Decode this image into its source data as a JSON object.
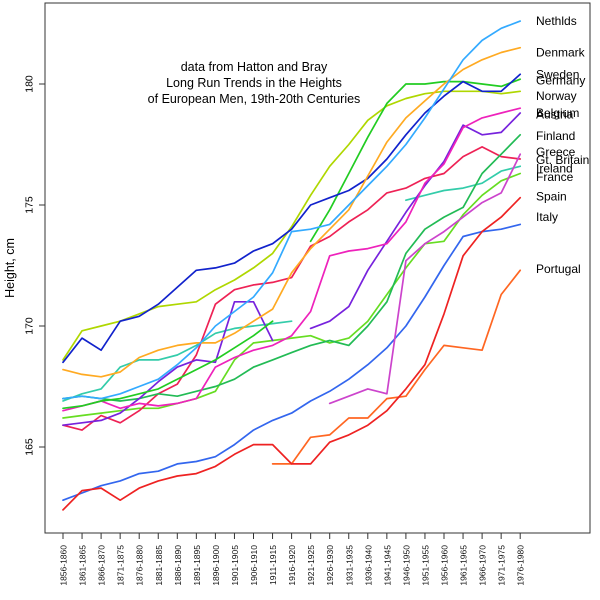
{
  "chart_data": {
    "type": "line",
    "title_lines": [
      "data from Hatton and Bray",
      "Long Run Trends in the Heights",
      "of European Men, 19th-20th Centuries"
    ],
    "ylabel": "Height, cm",
    "y_ticks": [
      165,
      170,
      175,
      180
    ],
    "ylim": [
      161.4,
      183.4
    ],
    "grid": false,
    "legend_position": "right-inline-labels",
    "x_categories": [
      "1856-1860",
      "1861-1865",
      "1866-1870",
      "1871-1875",
      "1876-1880",
      "1881-1885",
      "1886-1890",
      "1891-1895",
      "1896-1900",
      "1901-1905",
      "1906-1910",
      "1911-1915",
      "1916-1920",
      "1921-1925",
      "1926-1930",
      "1931-1935",
      "1936-1940",
      "1941-1945",
      "1946-1950",
      "1951-1955",
      "1956-1960",
      "1961-1965",
      "1966-1970",
      "1971-1975",
      "1976-1980"
    ],
    "series": [
      {
        "id": "portugal",
        "name": "Portugal",
        "color": "#FF6622",
        "label_cm": 172.35,
        "values": [
          null,
          null,
          null,
          null,
          null,
          null,
          null,
          null,
          null,
          null,
          null,
          164.3,
          164.3,
          165.4,
          165.5,
          166.2,
          166.2,
          167.0,
          167.1,
          168.2,
          169.2,
          169.1,
          169.0,
          171.3,
          172.3
        ]
      },
      {
        "id": "italy",
        "name": "Italy",
        "color": "#3366EE",
        "label_cm": 174.5,
        "values": [
          162.8,
          163.1,
          163.4,
          163.6,
          163.9,
          164.0,
          164.3,
          164.4,
          164.6,
          165.1,
          165.7,
          166.1,
          166.4,
          166.9,
          167.3,
          167.8,
          168.4,
          169.1,
          170.0,
          171.2,
          172.5,
          173.7,
          173.9,
          174.0,
          174.2
        ]
      },
      {
        "id": "spain",
        "name": "Spain",
        "color": "#EE2222",
        "label_cm": 175.35,
        "values": [
          162.4,
          163.2,
          163.3,
          162.8,
          163.3,
          163.6,
          163.8,
          163.9,
          164.2,
          164.7,
          165.1,
          165.1,
          164.3,
          164.3,
          165.2,
          165.5,
          165.9,
          166.5,
          167.4,
          168.4,
          170.5,
          172.9,
          173.9,
          174.5,
          175.3
        ]
      },
      {
        "id": "france",
        "name": "France",
        "color": "#66DD22",
        "label_cm": 176.15,
        "values": [
          166.2,
          166.3,
          166.4,
          166.5,
          166.6,
          166.6,
          166.8,
          167.0,
          167.3,
          168.6,
          169.3,
          169.4,
          169.5,
          169.6,
          169.3,
          169.5,
          170.2,
          171.3,
          172.4,
          173.4,
          173.5,
          174.6,
          175.4,
          176.0,
          176.3
        ]
      },
      {
        "id": "ireland",
        "name": "Ireland",
        "color": "#33CCAA",
        "label_cm": 176.5,
        "values": [
          166.9,
          167.2,
          167.4,
          168.3,
          168.6,
          168.6,
          168.8,
          169.2,
          169.7,
          169.9,
          170.0,
          170.1,
          170.2,
          null,
          null,
          null,
          null,
          null,
          175.2,
          175.4,
          175.6,
          175.7,
          175.9,
          176.4,
          176.6
        ]
      },
      {
        "id": "gt-britain",
        "name": "Gt. Britain",
        "color": "#EE2255",
        "label_cm": 176.85,
        "values": [
          165.9,
          165.7,
          166.3,
          166.0,
          166.5,
          167.2,
          167.6,
          168.8,
          170.9,
          171.5,
          171.7,
          171.8,
          172.0,
          173.3,
          173.7,
          174.3,
          174.8,
          175.5,
          175.7,
          176.1,
          176.3,
          177.0,
          177.4,
          177.0,
          176.9
        ]
      },
      {
        "id": "greece",
        "name": "Greece",
        "color": "#CC44CC",
        "label_cm": 177.2,
        "values": [
          null,
          null,
          null,
          null,
          null,
          null,
          null,
          null,
          null,
          null,
          null,
          null,
          null,
          null,
          166.8,
          167.1,
          167.4,
          167.2,
          172.7,
          173.4,
          173.9,
          174.5,
          175.1,
          175.5,
          177.1
        ]
      },
      {
        "id": "finland",
        "name": "Finland",
        "color": "#22BB55",
        "label_cm": 177.85,
        "values": [
          167.0,
          167.1,
          167.0,
          166.9,
          167.0,
          167.2,
          167.1,
          167.3,
          167.5,
          167.8,
          168.3,
          168.6,
          168.9,
          169.2,
          169.4,
          169.2,
          170.0,
          171.0,
          173.0,
          174.0,
          174.5,
          174.9,
          176.3,
          177.1,
          177.9
        ]
      },
      {
        "id": "belgium",
        "name": "Belgium",
        "color": "#7722DD",
        "label_cm": 178.8,
        "values": [
          165.9,
          166.0,
          166.1,
          166.4,
          167.0,
          167.7,
          168.3,
          168.6,
          168.5,
          171.0,
          171.0,
          169.4,
          null,
          169.9,
          170.2,
          170.8,
          172.3,
          173.5,
          174.7,
          175.8,
          176.8,
          178.3,
          177.9,
          178.0,
          178.8
        ]
      },
      {
        "id": "austria",
        "name": "Austria",
        "color": "#EE22BB",
        "label_cm": 178.75,
        "values": [
          166.5,
          166.7,
          166.9,
          166.6,
          166.8,
          166.7,
          166.8,
          167.0,
          168.3,
          168.7,
          169.0,
          169.2,
          169.6,
          170.6,
          172.9,
          173.1,
          173.2,
          173.4,
          174.3,
          175.9,
          176.7,
          178.2,
          178.6,
          178.8,
          179.0
        ]
      },
      {
        "id": "norway",
        "name": "Norway",
        "color": "#AFD700",
        "label_cm": 179.5,
        "values": [
          168.6,
          169.8,
          170.0,
          170.2,
          170.5,
          170.8,
          170.9,
          171.0,
          171.5,
          171.9,
          172.4,
          173.0,
          174.1,
          175.4,
          176.6,
          177.5,
          178.5,
          179.1,
          179.4,
          179.6,
          179.7,
          179.7,
          179.7,
          179.6,
          179.7
        ]
      },
      {
        "id": "germany",
        "name": "Germany",
        "color": "#22CC22",
        "label_cm": 180.15,
        "values": [
          166.6,
          166.7,
          166.9,
          167.0,
          167.2,
          167.4,
          167.8,
          168.2,
          168.6,
          169.1,
          169.6,
          170.2,
          null,
          173.5,
          174.8,
          176.3,
          177.8,
          179.2,
          180.0,
          180.0,
          180.1,
          180.1,
          180.0,
          179.9,
          180.2
        ]
      },
      {
        "id": "sweden",
        "name": "Sweden",
        "color": "#1122CC",
        "label_cm": 180.4,
        "values": [
          168.5,
          169.5,
          169.0,
          170.2,
          170.4,
          170.9,
          171.6,
          172.3,
          172.4,
          172.6,
          173.1,
          173.4,
          174.0,
          175.0,
          175.3,
          175.6,
          176.1,
          176.9,
          177.9,
          178.8,
          179.5,
          180.1,
          179.7,
          179.7,
          180.4
        ]
      },
      {
        "id": "denmark",
        "name": "Denmark",
        "color": "#FFAA22",
        "label_cm": 181.3,
        "values": [
          168.2,
          168.0,
          167.9,
          168.1,
          168.7,
          169.0,
          169.2,
          169.3,
          169.3,
          169.7,
          170.2,
          170.7,
          172.2,
          173.2,
          174.0,
          174.8,
          176.2,
          177.6,
          178.6,
          179.3,
          180.0,
          180.6,
          181.0,
          181.3,
          181.5
        ]
      },
      {
        "id": "netherlands",
        "name": "Nethlds",
        "color": "#33AAFF",
        "label_cm": 182.6,
        "values": [
          167.0,
          167.1,
          167.0,
          167.2,
          167.5,
          167.8,
          168.4,
          169.1,
          170.0,
          170.6,
          171.2,
          172.2,
          173.9,
          174.0,
          174.2,
          175.0,
          175.8,
          176.6,
          177.5,
          178.6,
          179.8,
          181.0,
          181.8,
          182.3,
          182.6
        ]
      }
    ]
  }
}
